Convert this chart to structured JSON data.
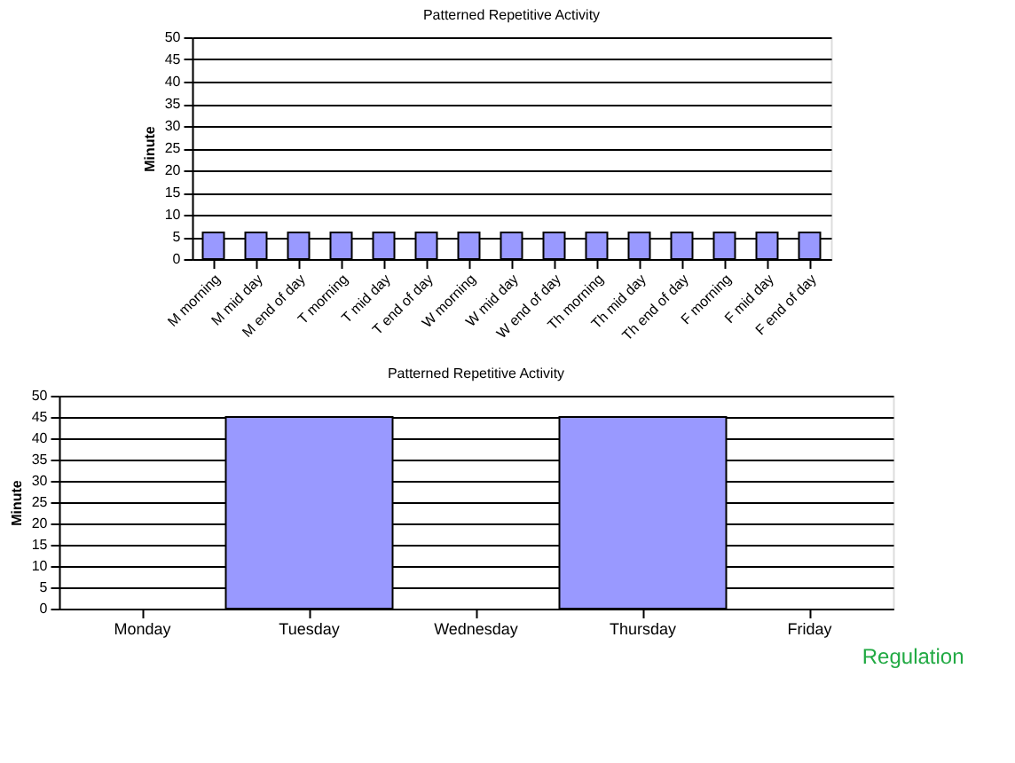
{
  "chart_data": [
    {
      "type": "bar",
      "title": "Patterned Repetitive Activity",
      "ylabel": "Minute",
      "categories": [
        "M morning",
        "M mid day",
        "M end of day",
        "T morning",
        "T mid day",
        "T end of day",
        "W morning",
        "W mid day",
        "W end of day",
        "Th morning",
        "Th mid day",
        "Th end of day",
        "F morning",
        "F mid day",
        "F end of day"
      ],
      "values": [
        6,
        6,
        6,
        6,
        6,
        6,
        6,
        6,
        6,
        6,
        6,
        6,
        6,
        6,
        6
      ],
      "color": "#9999ff",
      "ylim": [
        0,
        50
      ],
      "yticks": [
        0,
        5,
        10,
        15,
        20,
        25,
        30,
        35,
        40,
        45,
        50
      ],
      "grid": "y"
    },
    {
      "type": "bar",
      "title": "Patterned Repetitive Activity",
      "ylabel": "Minute",
      "categories": [
        "Monday",
        "Tuesday",
        "Wednesday",
        "Thursday",
        "Friday"
      ],
      "values": [
        0,
        45,
        0,
        45,
        0
      ],
      "color": "#9999ff",
      "ylim": [
        0,
        50
      ],
      "yticks": [
        0,
        5,
        10,
        15,
        20,
        25,
        30,
        35,
        40,
        45,
        50
      ],
      "grid": "y",
      "annotations": [
        "Regulation"
      ]
    }
  ]
}
